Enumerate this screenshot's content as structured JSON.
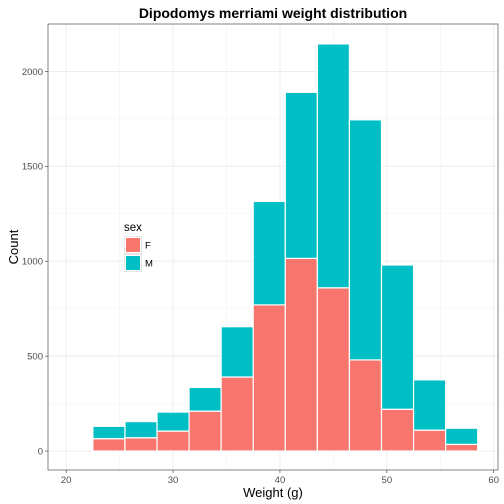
{
  "chart_data": {
    "type": "bar",
    "stacked": true,
    "title": "Dipodomys merriami weight distribution",
    "xlabel": "Weight (g)",
    "ylabel": "Count",
    "x_ticks": [
      20,
      30,
      40,
      50,
      60
    ],
    "y_ticks": [
      0,
      500,
      1000,
      1500,
      2000
    ],
    "xlim": [
      18.3,
      60.4
    ],
    "ylim": [
      -100,
      2250
    ],
    "bin_width": 3,
    "bin_centers": [
      24,
      27,
      30,
      33,
      36,
      39,
      42,
      45,
      48,
      51,
      54,
      57
    ],
    "series": [
      {
        "name": "F",
        "color": "#F8766D",
        "values": [
          65,
          70,
          105,
          210,
          390,
          770,
          1015,
          860,
          480,
          220,
          110,
          35
        ]
      },
      {
        "name": "M",
        "color": "#00BFC4",
        "values": [
          65,
          85,
          100,
          125,
          265,
          545,
          875,
          1285,
          1265,
          760,
          265,
          85
        ]
      }
    ],
    "legend": {
      "title": "sex",
      "position": "left"
    },
    "grid": true,
    "background": "white"
  }
}
